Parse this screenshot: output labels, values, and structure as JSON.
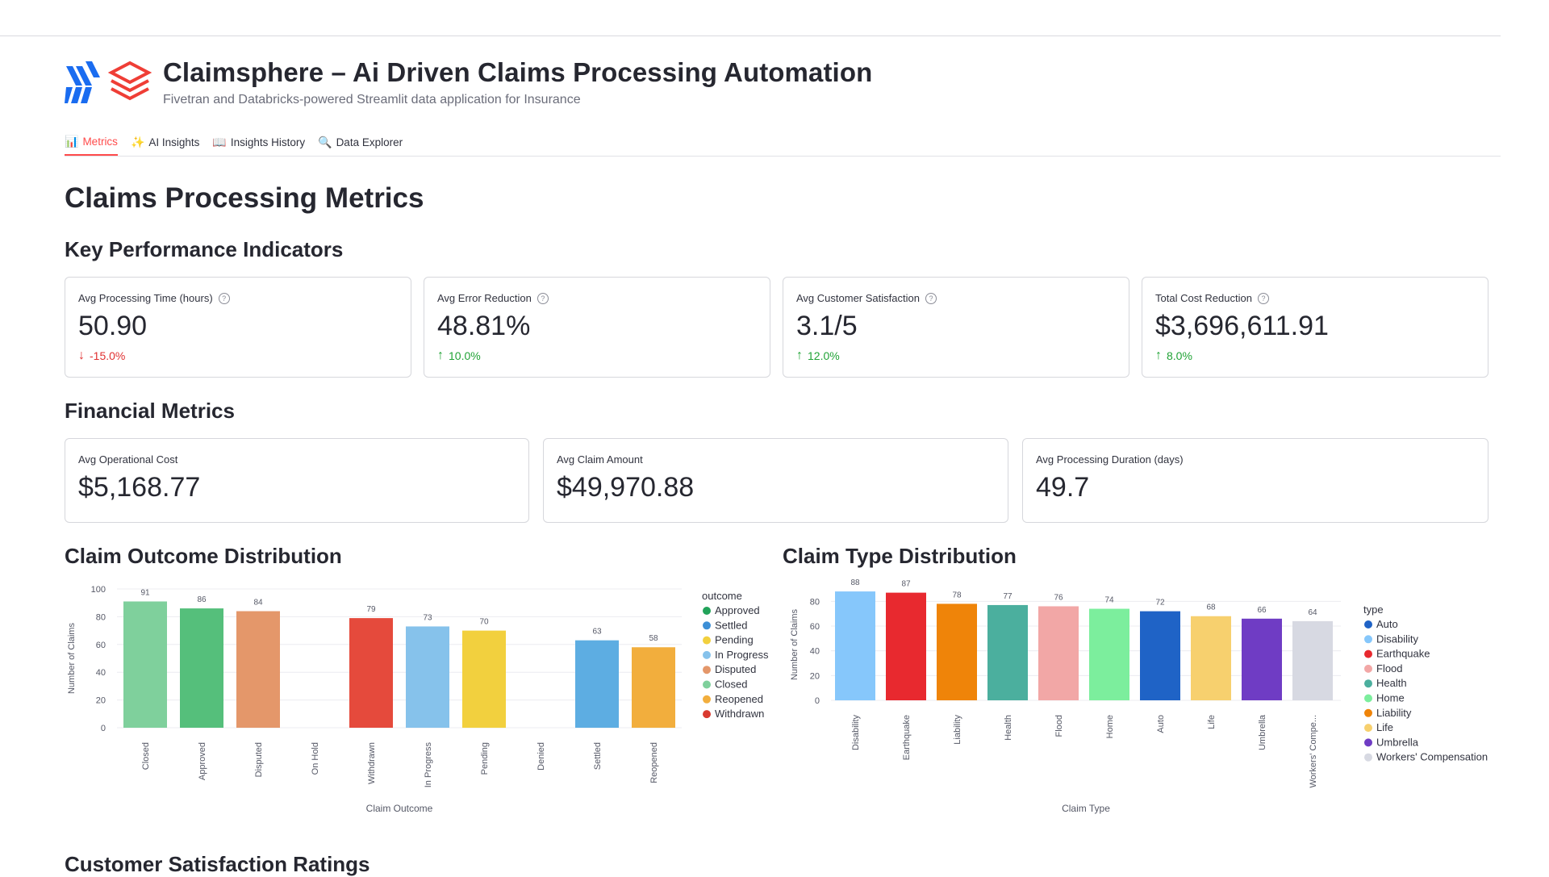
{
  "app": {
    "title": "Claimsphere – Ai Driven Claims Processing Automation",
    "subtitle": "Fivetran and Databricks-powered Streamlit data application for Insurance"
  },
  "tabs": [
    {
      "label": "Metrics",
      "icon": "bar-chart-icon",
      "glyph": "📊",
      "active": true
    },
    {
      "label": "AI Insights",
      "icon": "sparkles-icon",
      "glyph": "✨",
      "active": false
    },
    {
      "label": "Insights History",
      "icon": "book-icon",
      "glyph": "📖",
      "active": false
    },
    {
      "label": "Data Explorer",
      "icon": "magnifier-icon",
      "glyph": "🔍",
      "active": false
    }
  ],
  "page_title": "Claims Processing Metrics",
  "kpi": {
    "heading": "Key Performance Indicators",
    "cards": [
      {
        "label": "Avg Processing Time (hours)",
        "value": "50.90",
        "delta": "-15.0%",
        "arrow": "↓",
        "direction": "down"
      },
      {
        "label": "Avg Error Reduction",
        "value": "48.81%",
        "delta": "10.0%",
        "arrow": "↑",
        "direction": "up"
      },
      {
        "label": "Avg Customer Satisfaction",
        "value": "3.1/5",
        "delta": "12.0%",
        "arrow": "↑",
        "direction": "up"
      },
      {
        "label": "Total Cost Reduction",
        "value": "$3,696,611.91",
        "delta": "8.0%",
        "arrow": "↑",
        "direction": "up"
      }
    ],
    "help_glyph": "?"
  },
  "financial": {
    "heading": "Financial Metrics",
    "cards": [
      {
        "label": "Avg Operational Cost",
        "value": "$5,168.77"
      },
      {
        "label": "Avg Claim Amount",
        "value": "$49,970.88"
      },
      {
        "label": "Avg Processing Duration (days)",
        "value": "49.7"
      }
    ]
  },
  "outcome_heading": "Claim Outcome Distribution",
  "type_heading": "Claim Type Distribution",
  "satisfaction_heading": "Customer Satisfaction Ratings",
  "colors": {
    "accent": "#ff4b4b",
    "delta_negative": "#e03131",
    "delta_positive": "#21a336"
  },
  "chart_data": [
    {
      "type": "bar",
      "categories": [
        "Closed",
        "Approved",
        "Disputed",
        "On Hold",
        "Withdrawn",
        "In Progress",
        "Pending",
        "Denied",
        "Settled",
        "Reopened"
      ],
      "values": [
        91,
        86,
        84,
        null,
        79,
        73,
        70,
        null,
        63,
        58
      ],
      "bar_colors": [
        "#7fd09c",
        "#55bf7b",
        "#e4976a",
        null,
        "#e54a3c",
        "#86c2eb",
        "#f2d03e",
        null,
        "#5dade2",
        "#f2ae3d"
      ],
      "label_colors": [
        "#7fd09c",
        "#55bf7b",
        "#e4976a",
        null,
        "#e54a3c",
        "#5dade2",
        "#e8c43a",
        null,
        "#5dade2",
        "#f2ae3d"
      ],
      "xlabel": "Claim Outcome",
      "ylabel": "Number of Claims",
      "ylim": [
        0,
        100
      ],
      "yticks": [
        0,
        20,
        40,
        60,
        80,
        100
      ],
      "grid": true,
      "legend": {
        "title": "outcome",
        "placement": "right",
        "items": [
          {
            "name": "Approved",
            "color": "#22a35a"
          },
          {
            "name": "Settled",
            "color": "#3d8fd6"
          },
          {
            "name": "Pending",
            "color": "#f2d03e"
          },
          {
            "name": "In Progress",
            "color": "#86c2eb"
          },
          {
            "name": "Disputed",
            "color": "#e4976a"
          },
          {
            "name": "Closed",
            "color": "#7fd09c"
          },
          {
            "name": "Reopened",
            "color": "#f2ae3d"
          },
          {
            "name": "Withdrawn",
            "color": "#d93a2f"
          }
        ]
      }
    },
    {
      "type": "bar",
      "categories": [
        "Disability",
        "Earthquake",
        "Liability",
        "Health",
        "Flood",
        "Home",
        "Auto",
        "Life",
        "Umbrella",
        "Workers' Compe..."
      ],
      "values": [
        88,
        87,
        78,
        77,
        76,
        74,
        72,
        68,
        66,
        64
      ],
      "bar_colors": [
        "#86c7fb",
        "#e8292f",
        "#ef8409",
        "#4baf9e",
        "#f2a7a6",
        "#7cee9d",
        "#1f63c6",
        "#f7d06e",
        "#6f3cc4",
        "#d7d9e2"
      ],
      "label_colors": [
        "#86c7fb",
        "#e8292f",
        "#ef8409",
        "#2f9c88",
        "#f2a7a6",
        "#5fd585",
        "#1f63c6",
        "#e8be4f",
        "#6f3cc4",
        "#c5c8d3"
      ],
      "xlabel": "Claim Type",
      "ylabel": "Number of Claims",
      "ylim": [
        0,
        90
      ],
      "yticks": [
        0,
        20,
        40,
        60,
        80
      ],
      "grid": true,
      "legend": {
        "title": "type",
        "placement": "right",
        "items": [
          {
            "name": "Auto",
            "color": "#1f63c6"
          },
          {
            "name": "Disability",
            "color": "#86c7fb"
          },
          {
            "name": "Earthquake",
            "color": "#e8292f"
          },
          {
            "name": "Flood",
            "color": "#f2a7a6"
          },
          {
            "name": "Health",
            "color": "#4baf9e"
          },
          {
            "name": "Home",
            "color": "#7cee9d"
          },
          {
            "name": "Liability",
            "color": "#ef8409"
          },
          {
            "name": "Life",
            "color": "#f7d06e"
          },
          {
            "name": "Umbrella",
            "color": "#6f3cc4"
          },
          {
            "name": "Workers' Compensation",
            "color": "#d7d9e2"
          }
        ]
      }
    }
  ]
}
